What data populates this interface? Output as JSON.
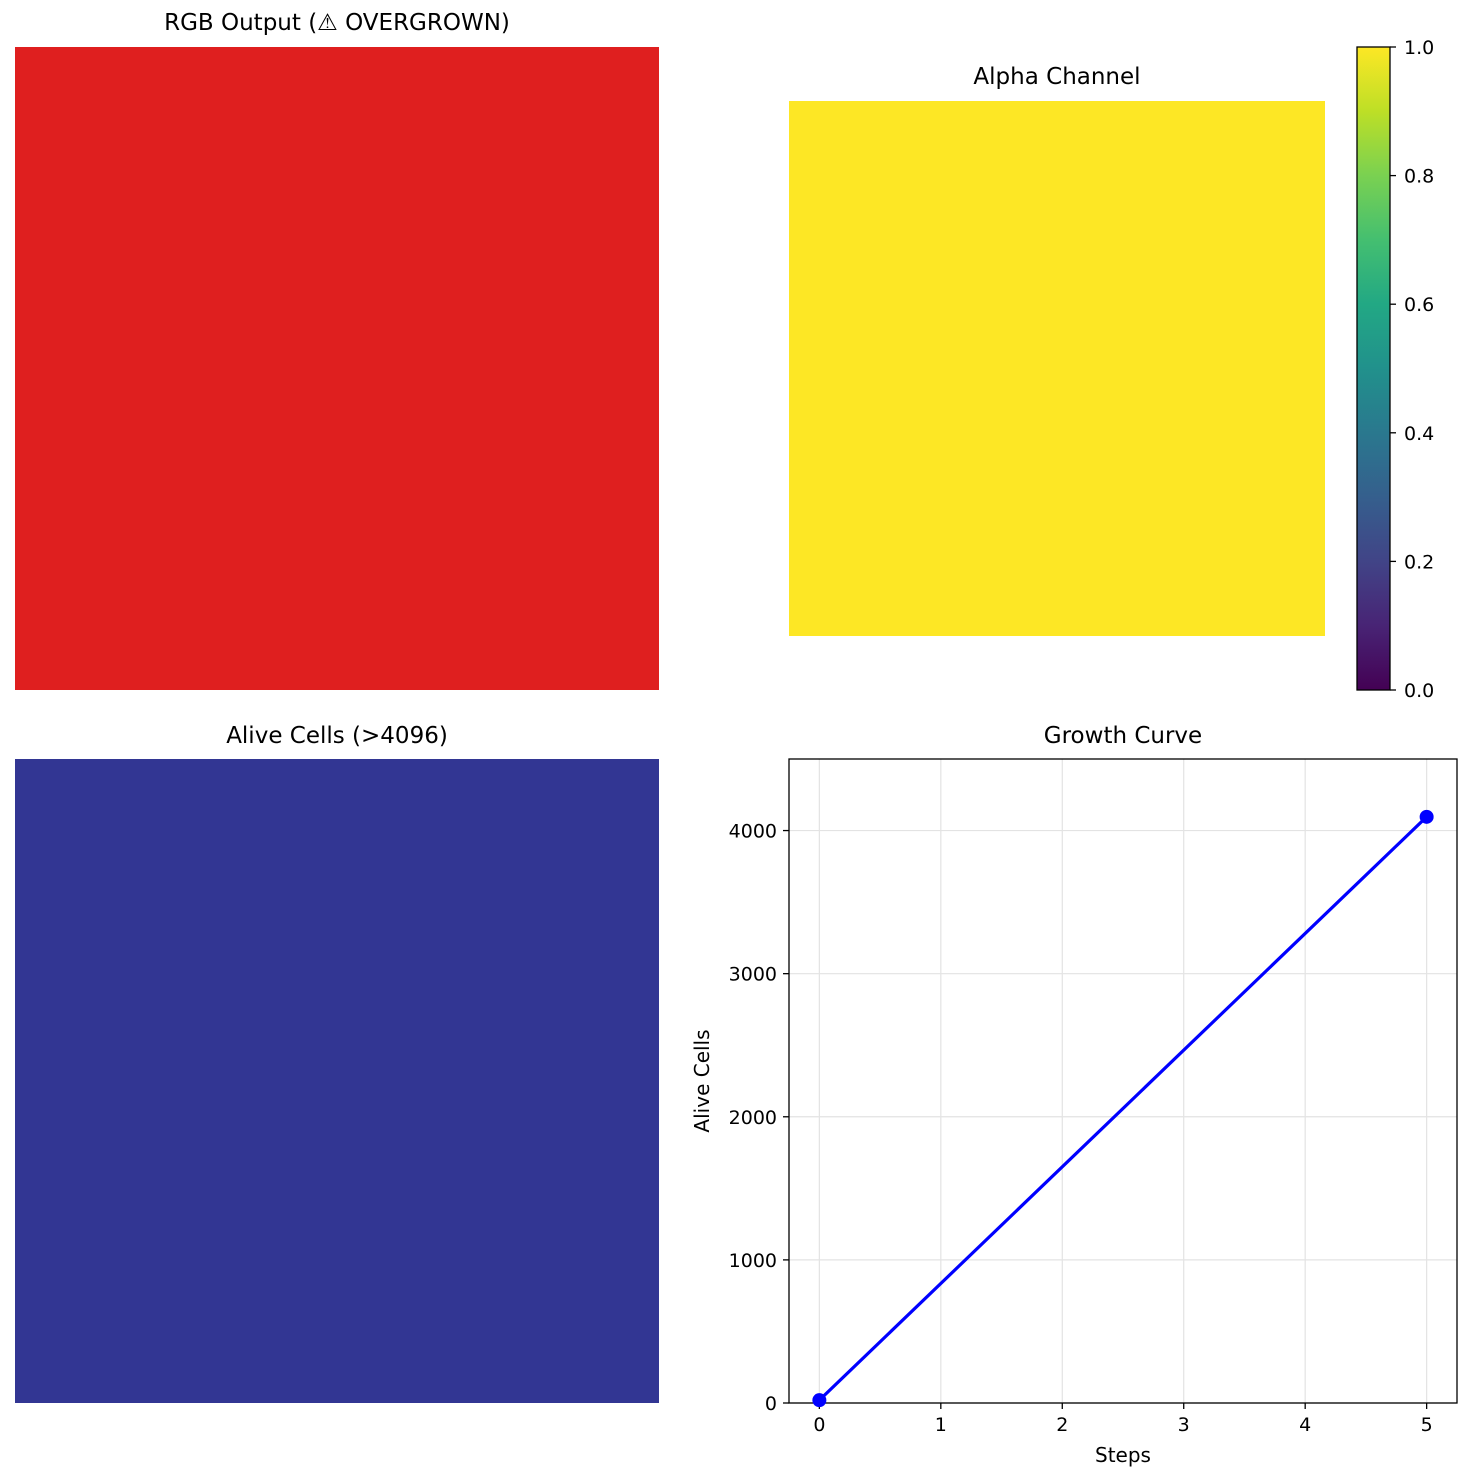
{
  "panels": {
    "rgb": {
      "title": "RGB Output (⚠  OVERGROWN)",
      "color": "#df1f1f"
    },
    "alpha": {
      "title": "Alpha Channel",
      "color": "#fde725"
    },
    "alive": {
      "title": "Alive Cells (>4096)",
      "color": "#323693"
    },
    "growth": {
      "title": "Growth Curve"
    }
  },
  "chart_data": [
    {
      "type": "heatmap",
      "title": "RGB Output (⚠  OVERGROWN)",
      "fill_color": "#df1f1f"
    },
    {
      "type": "heatmap",
      "title": "Alpha Channel",
      "fill_value": 1.0,
      "fill_color": "#fde725",
      "colorbar": {
        "colormap": "viridis",
        "range": [
          0.0,
          1.0
        ],
        "ticks": [
          "0.0",
          "0.2",
          "0.4",
          "0.6",
          "0.8",
          "1.0"
        ],
        "tick_values": [
          0.0,
          0.2,
          0.4,
          0.6,
          0.8,
          1.0
        ]
      }
    },
    {
      "type": "heatmap",
      "title": "Alive Cells (>4096)",
      "fill_color": "#323693"
    },
    {
      "type": "line",
      "title": "Growth Curve",
      "xlabel": "Steps",
      "ylabel": "Alive Cells",
      "xlim": [
        -0.25,
        5.25
      ],
      "ylim": [
        0,
        4500
      ],
      "xticks": [
        0,
        1,
        2,
        3,
        4,
        5
      ],
      "yticks": [
        0,
        1000,
        2000,
        3000,
        4000
      ],
      "grid": true,
      "series": [
        {
          "x": [
            0,
            5
          ],
          "y": [
            20,
            4096
          ],
          "color": "#0000ff",
          "marker": "circle"
        }
      ]
    }
  ]
}
